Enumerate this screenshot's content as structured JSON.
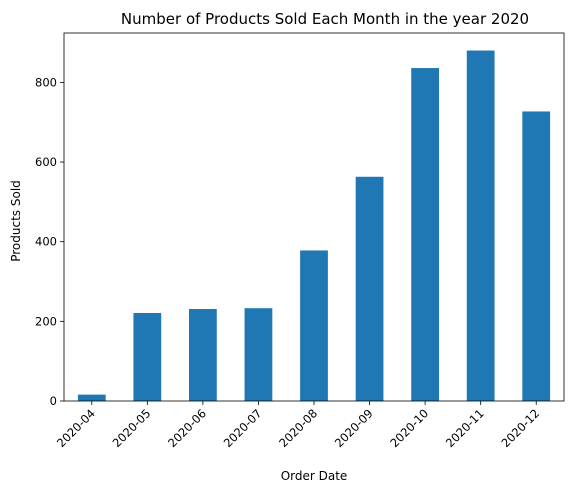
{
  "chart_data": {
    "type": "bar",
    "title": "Number of Products Sold Each Month in the year 2020",
    "xlabel": "Order Date",
    "ylabel": "Products Sold",
    "categories": [
      "2020-04",
      "2020-05",
      "2020-06",
      "2020-07",
      "2020-08",
      "2020-09",
      "2020-10",
      "2020-11",
      "2020-12"
    ],
    "values": [
      16,
      221,
      231,
      233,
      378,
      563,
      836,
      880,
      727
    ],
    "ylim": [
      0,
      924
    ],
    "yticks": [
      0,
      200,
      400,
      600,
      800
    ],
    "grid": false,
    "bar_color": "#1f77b4"
  }
}
